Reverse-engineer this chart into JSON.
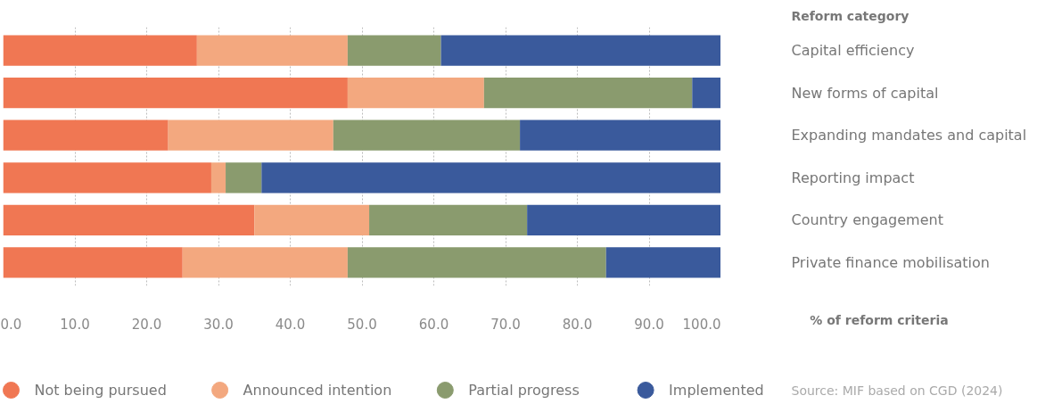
{
  "chart_data": {
    "type": "bar",
    "orientation": "horizontal",
    "stacked": true,
    "categories": [
      "Capital efficiency",
      "New forms of capital",
      "Expanding mandates and capital",
      "Reporting impact",
      "Country engagement",
      "Private finance mobilisation"
    ],
    "series": [
      {
        "name": "Not being pursued",
        "color": "#f07753",
        "values": [
          27,
          48,
          23,
          29,
          35,
          25
        ]
      },
      {
        "name": "Announced intention",
        "color": "#f3a87f",
        "values": [
          21,
          19,
          23,
          2,
          16,
          23
        ]
      },
      {
        "name": "Partial progress",
        "color": "#8a9b6e",
        "values": [
          13,
          29,
          26,
          5,
          22,
          36
        ]
      },
      {
        "name": "Implemented",
        "color": "#3a5a9c",
        "values": [
          39,
          4,
          28,
          64,
          27,
          16
        ]
      }
    ],
    "xlim": [
      0,
      100
    ],
    "xticks": [
      {
        "value": 0,
        "label": "0.0"
      },
      {
        "value": 10,
        "label": "10.0"
      },
      {
        "value": 20,
        "label": "20.0"
      },
      {
        "value": 30,
        "label": "30.0"
      },
      {
        "value": 40,
        "label": "40.0"
      },
      {
        "value": 50,
        "label": "50.0"
      },
      {
        "value": 60,
        "label": "60.0"
      },
      {
        "value": 70,
        "label": "70.0"
      },
      {
        "value": 80,
        "label": "80.0"
      },
      {
        "value": 90,
        "label": "90.0"
      },
      {
        "value": 100,
        "label": "100.0"
      }
    ],
    "xlabel": "% of reform criteria",
    "ylabel": "Reform category",
    "grid": "x",
    "legend": "bottom",
    "annotations": [
      "Source: MIF based on CGD (2024)"
    ]
  }
}
